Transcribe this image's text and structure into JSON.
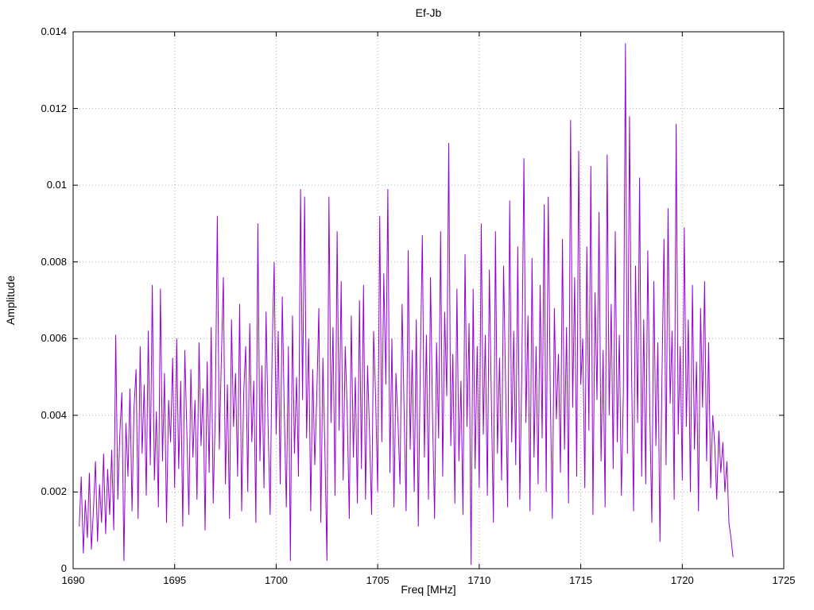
{
  "chart_data": {
    "type": "line",
    "title": "Ef-Jb",
    "xlabel": "Freq [MHz]",
    "ylabel": "Amplitude",
    "xlim": [
      1690,
      1725
    ],
    "ylim": [
      0,
      0.014
    ],
    "grid": true,
    "legend": "none",
    "line_color": "#9400d3",
    "grid_color": "#b0b0b0",
    "xtick_values": [
      1690,
      1695,
      1700,
      1705,
      1710,
      1715,
      1720,
      1725
    ],
    "xtick_labels": [
      "1690",
      "1695",
      "1700",
      "1705",
      "1710",
      "1715",
      "1720",
      "1725"
    ],
    "ytick_values": [
      0,
      0.002,
      0.004,
      0.006,
      0.008,
      0.01,
      0.012,
      0.014
    ],
    "ytick_labels": [
      "0",
      "0.002",
      "0.004",
      "0.006",
      "0.008",
      "0.01",
      "0.012",
      "0.014"
    ],
    "x_start": 1690.3,
    "x_step": 0.1,
    "x_end": 1722.5,
    "y": [
      0.0011,
      0.0024,
      0.0004,
      0.0018,
      0.0008,
      0.0025,
      0.0005,
      0.0015,
      0.0028,
      0.0007,
      0.0022,
      0.0012,
      0.003,
      0.0009,
      0.0026,
      0.0014,
      0.0031,
      0.001,
      0.0061,
      0.0018,
      0.0035,
      0.0046,
      0.0002,
      0.0038,
      0.0024,
      0.0047,
      0.0015,
      0.0042,
      0.0052,
      0.0013,
      0.0058,
      0.003,
      0.0048,
      0.0019,
      0.0062,
      0.0027,
      0.0074,
      0.0023,
      0.0041,
      0.0016,
      0.0073,
      0.0028,
      0.0051,
      0.0012,
      0.0044,
      0.0033,
      0.0055,
      0.0021,
      0.006,
      0.0026,
      0.0049,
      0.0011,
      0.0057,
      0.0036,
      0.0014,
      0.0052,
      0.0029,
      0.0044,
      0.0018,
      0.0059,
      0.0032,
      0.0047,
      0.001,
      0.0054,
      0.0025,
      0.0063,
      0.0017,
      0.004,
      0.0092,
      0.0031,
      0.0055,
      0.0076,
      0.0022,
      0.0048,
      0.0013,
      0.0065,
      0.0037,
      0.0051,
      0.0024,
      0.0069,
      0.0015,
      0.0046,
      0.0058,
      0.002,
      0.0064,
      0.0033,
      0.0049,
      0.0012,
      0.009,
      0.0028,
      0.0053,
      0.0021,
      0.0067,
      0.0038,
      0.0014,
      0.0056,
      0.008,
      0.0035,
      0.0062,
      0.0022,
      0.0071,
      0.0041,
      0.0016,
      0.0058,
      0.0002,
      0.0066,
      0.003,
      0.005,
      0.0024,
      0.0099,
      0.0044,
      0.0097,
      0.0034,
      0.006,
      0.0015,
      0.0052,
      0.0027,
      0.0045,
      0.0068,
      0.0012,
      0.0055,
      0.0031,
      0.0002,
      0.0097,
      0.0038,
      0.0063,
      0.0019,
      0.0088,
      0.0036,
      0.0075,
      0.0023,
      0.0058,
      0.0041,
      0.0013,
      0.0066,
      0.0029,
      0.005,
      0.0017,
      0.007,
      0.0026,
      0.0074,
      0.0018,
      0.0053,
      0.0035,
      0.0014,
      0.0062,
      0.0044,
      0.002,
      0.0092,
      0.0033,
      0.0077,
      0.0048,
      0.0099,
      0.0025,
      0.006,
      0.0016,
      0.0051,
      0.0038,
      0.0022,
      0.0069,
      0.0042,
      0.0015,
      0.0083,
      0.0031,
      0.0057,
      0.002,
      0.0065,
      0.0011,
      0.0054,
      0.0087,
      0.0029,
      0.0061,
      0.0018,
      0.0076,
      0.004,
      0.0013,
      0.0059,
      0.0034,
      0.0088,
      0.0024,
      0.0067,
      0.0045,
      0.0111,
      0.0032,
      0.0056,
      0.0017,
      0.0073,
      0.0028,
      0.0049,
      0.0014,
      0.0082,
      0.0037,
      0.0064,
      0.0001,
      0.0073,
      0.0026,
      0.0058,
      0.0021,
      0.009,
      0.0035,
      0.0061,
      0.0019,
      0.0078,
      0.0043,
      0.0012,
      0.0088,
      0.003,
      0.0055,
      0.0023,
      0.0079,
      0.0047,
      0.0016,
      0.0096,
      0.0033,
      0.0062,
      0.0027,
      0.0084,
      0.0018,
      0.0052,
      0.0107,
      0.0038,
      0.0066,
      0.0015,
      0.0081,
      0.0029,
      0.0058,
      0.0022,
      0.0074,
      0.0034,
      0.0095,
      0.002,
      0.0097,
      0.0045,
      0.0013,
      0.0068,
      0.0039,
      0.0056,
      0.0025,
      0.0086,
      0.0031,
      0.0063,
      0.0017,
      0.0117,
      0.0042,
      0.0076,
      0.0024,
      0.0109,
      0.0048,
      0.006,
      0.0021,
      0.0084,
      0.0036,
      0.0105,
      0.0014,
      0.0072,
      0.0044,
      0.0093,
      0.0028,
      0.0057,
      0.0016,
      0.0108,
      0.004,
      0.0069,
      0.0026,
      0.0088,
      0.0033,
      0.0061,
      0.0019,
      0.0046,
      0.0137,
      0.003,
      0.0118,
      0.0053,
      0.0015,
      0.0079,
      0.0038,
      0.0102,
      0.0024,
      0.0065,
      0.0022,
      0.0083,
      0.0041,
      0.0012,
      0.0075,
      0.0032,
      0.0059,
      0.0007,
      0.0049,
      0.0086,
      0.0027,
      0.0094,
      0.0043,
      0.0062,
      0.0018,
      0.0116,
      0.0035,
      0.0058,
      0.0023,
      0.0089,
      0.0037,
      0.0065,
      0.002,
      0.0074,
      0.0031,
      0.0054,
      0.0015,
      0.0068,
      0.0042,
      0.0075,
      0.0028,
      0.0059,
      0.0021,
      0.004,
      0.0032,
      0.0018,
      0.0036,
      0.0025,
      0.0033,
      0.002,
      0.0028,
      0.0012,
      0.0008,
      0.0003
    ]
  }
}
